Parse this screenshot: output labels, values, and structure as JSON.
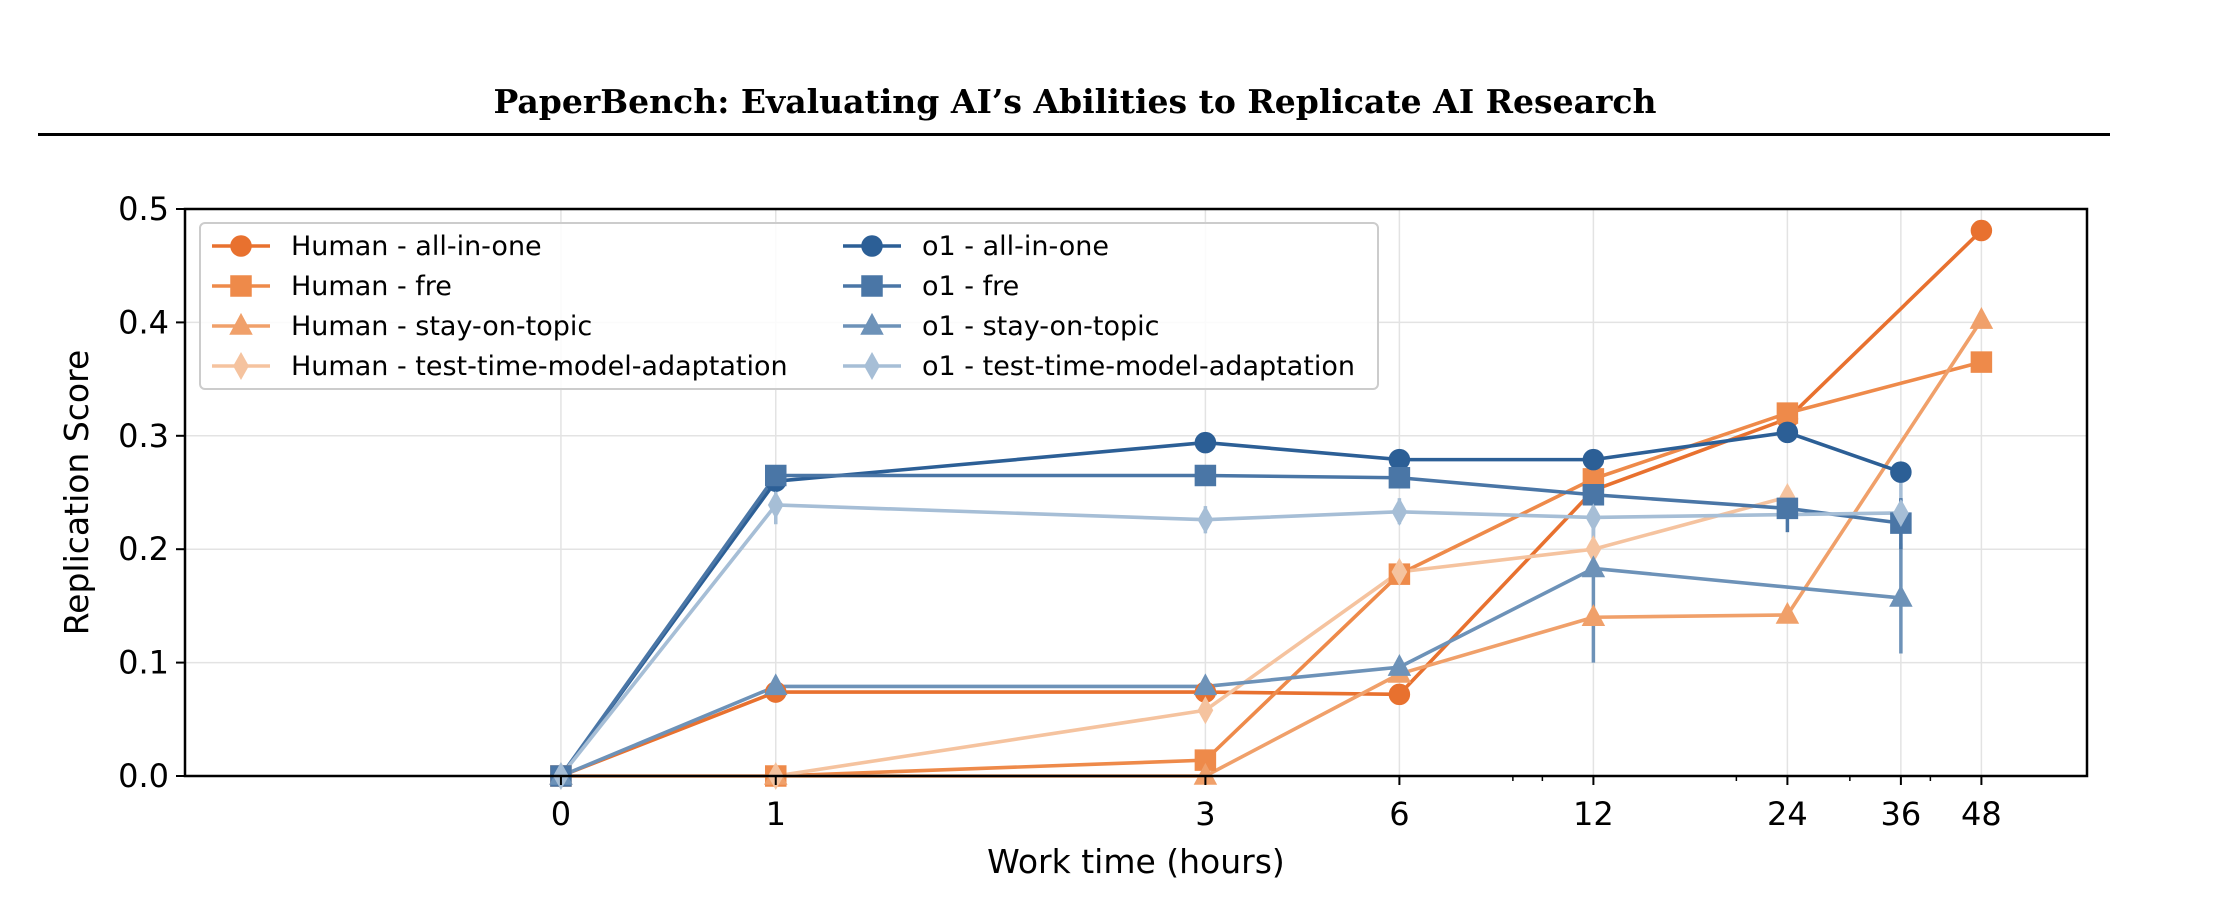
{
  "header": {
    "title": "PaperBench: Evaluating AI’s Abilities to Replicate AI Research"
  },
  "chart_data": {
    "type": "line",
    "xlabel": "Work time (hours)",
    "ylabel": "Replication Score",
    "x_scale": "symlog",
    "xticks": [
      0,
      1,
      3,
      6,
      12,
      24,
      36,
      48
    ],
    "ylim": [
      0,
      0.5
    ],
    "yticks": [
      0.0,
      0.1,
      0.2,
      0.3,
      0.4,
      0.5
    ],
    "ytick_labels": [
      "0.0",
      "0.1",
      "0.2",
      "0.3",
      "0.4",
      "0.5"
    ],
    "grid": true,
    "legend_position": "top-left",
    "series": [
      {
        "name": "Human - all-in-one",
        "group": "human",
        "marker": "circle",
        "color": "#e8712f",
        "opacity": 1.0,
        "x": [
          0,
          1,
          3,
          6,
          12,
          24,
          48
        ],
        "y": [
          0.0,
          0.074,
          0.074,
          0.072,
          0.252,
          0.315,
          0.481
        ]
      },
      {
        "name": "Human - fre",
        "group": "human",
        "marker": "square",
        "color": "#ee8a4a",
        "opacity": 1.0,
        "x": [
          0,
          1,
          3,
          6,
          12,
          24,
          48
        ],
        "y": [
          0.0,
          0.0,
          0.014,
          0.178,
          0.262,
          0.32,
          0.365
        ]
      },
      {
        "name": "Human - stay-on-topic",
        "group": "human",
        "marker": "triangle",
        "color": "#f0a06a",
        "opacity": 1.0,
        "x": [
          0,
          1,
          3,
          6,
          12,
          24,
          48
        ],
        "y": [
          0.0,
          0.0,
          0.0,
          0.09,
          0.14,
          0.142,
          0.402
        ]
      },
      {
        "name": "Human - test-time-model-adaptation",
        "group": "human",
        "marker": "diamond",
        "color": "#f5c39f",
        "opacity": 1.0,
        "x": [
          0,
          1,
          3,
          6,
          12,
          24
        ],
        "y": [
          0.0,
          0.0,
          0.058,
          0.18,
          0.2,
          0.246
        ]
      },
      {
        "name": "o1  - all-in-one",
        "group": "o1",
        "marker": "circle",
        "color": "#2c5f96",
        "opacity": 1.0,
        "x": [
          0,
          1,
          3,
          6,
          12,
          24,
          36
        ],
        "y": [
          0.0,
          0.26,
          0.294,
          0.279,
          0.279,
          0.303,
          0.268
        ]
      },
      {
        "name": "o1  - fre",
        "group": "o1",
        "marker": "square",
        "color": "#4a76a6",
        "opacity": 1.0,
        "x": [
          0,
          1,
          3,
          6,
          12,
          24,
          36
        ],
        "y": [
          0.0,
          0.265,
          0.265,
          0.263,
          0.248,
          0.236,
          0.223
        ]
      },
      {
        "name": "o1  - stay-on-topic",
        "group": "o1",
        "marker": "triangle",
        "color": "#6d92b8",
        "opacity": 1.0,
        "x": [
          0,
          1,
          3,
          6,
          12,
          36
        ],
        "y": [
          0.0,
          0.079,
          0.079,
          0.096,
          0.183,
          0.157
        ]
      },
      {
        "name": "o1  - test-time-model-adaptation",
        "group": "o1",
        "marker": "diamond",
        "color": "#a6bed6",
        "opacity": 1.0,
        "x": [
          0,
          1,
          3,
          6,
          12,
          36
        ],
        "y": [
          0.0,
          0.239,
          0.226,
          0.233,
          0.228,
          0.232
        ]
      }
    ],
    "error_bars": [
      {
        "series": "o1  - stay-on-topic",
        "x": 12,
        "low": 0.1,
        "high": 0.22
      },
      {
        "series": "o1  - stay-on-topic",
        "x": 36,
        "low": 0.108,
        "high": 0.205
      },
      {
        "series": "o1  - test-time-model-adaptation",
        "x": 1,
        "low": 0.222,
        "high": 0.256
      },
      {
        "series": "o1  - test-time-model-adaptation",
        "x": 3,
        "low": 0.214,
        "high": 0.238
      },
      {
        "series": "o1  - test-time-model-adaptation",
        "x": 6,
        "low": 0.222,
        "high": 0.245
      },
      {
        "series": "o1  - test-time-model-adaptation",
        "x": 12,
        "low": 0.21,
        "high": 0.246
      },
      {
        "series": "o1  - test-time-model-adaptation",
        "x": 36,
        "low": 0.205,
        "high": 0.26
      },
      {
        "series": "o1  - fre",
        "x": 24,
        "low": 0.215,
        "high": 0.255
      },
      {
        "series": "o1  - fre",
        "x": 36,
        "low": 0.2,
        "high": 0.245
      }
    ]
  }
}
